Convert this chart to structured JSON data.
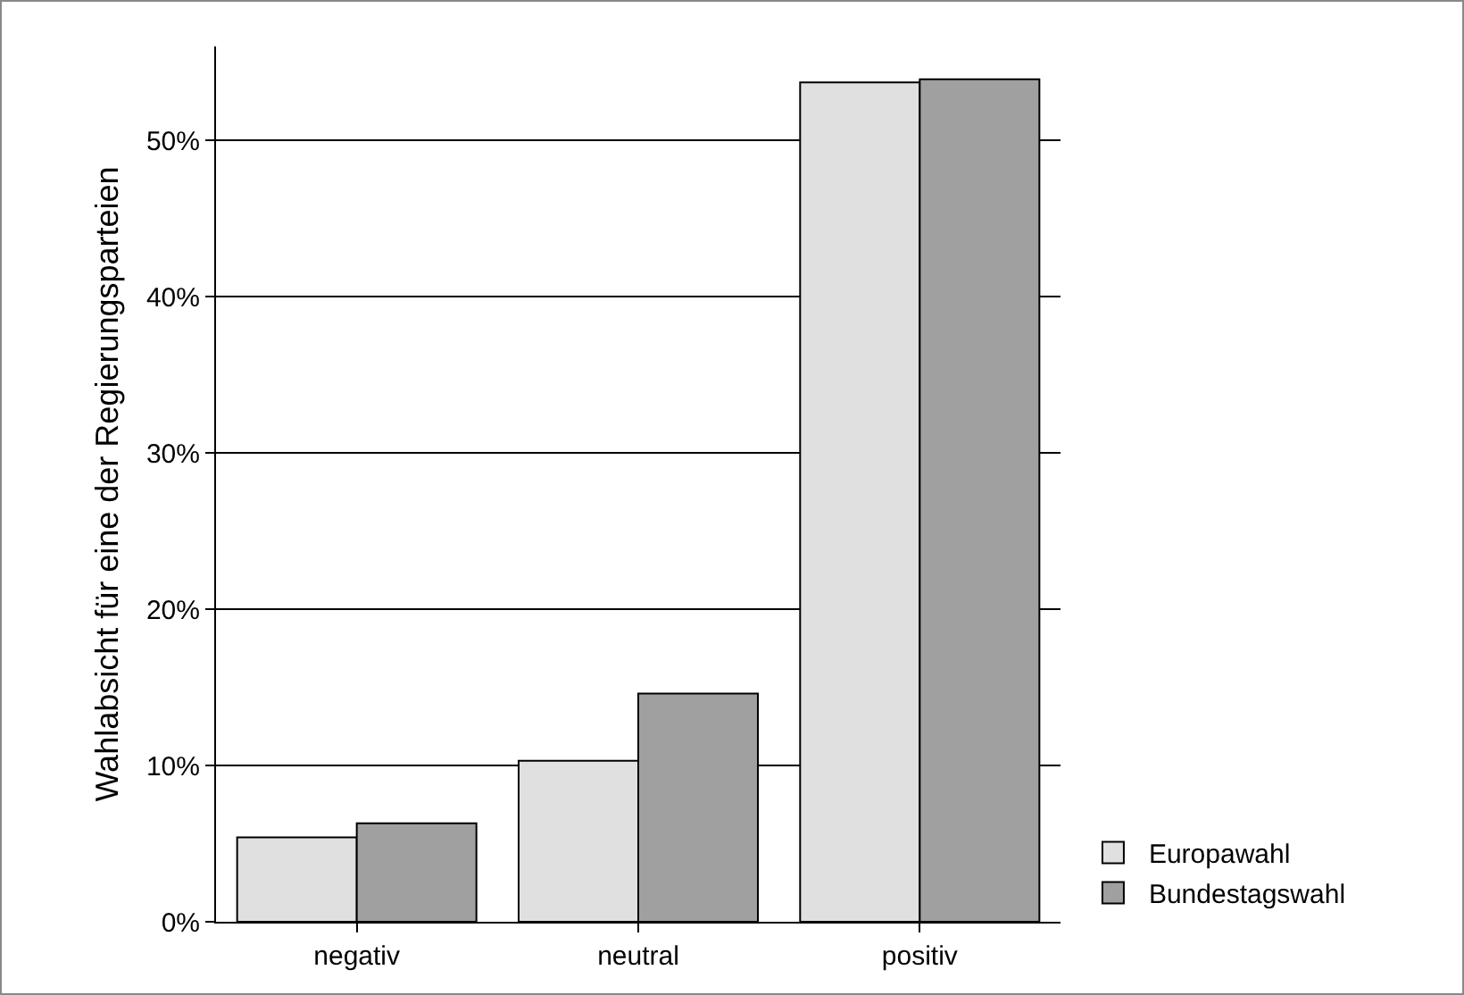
{
  "chart_data": {
    "type": "bar",
    "ylabel": "Wahlabsicht für eine der Regierungsparteien",
    "categories": [
      "negativ",
      "neutral",
      "positiv"
    ],
    "series": [
      {
        "name": "Europawahl",
        "color": "#e0e0e0",
        "values": [
          5.4,
          10.3,
          53.7
        ]
      },
      {
        "name": "Bundestagswahl",
        "color": "#a0a0a0",
        "values": [
          6.3,
          14.6,
          53.9
        ]
      }
    ],
    "ylim": [
      0,
      56
    ],
    "yticks": [
      {
        "value": 0,
        "label": "0%"
      },
      {
        "value": 10,
        "label": "10%"
      },
      {
        "value": 20,
        "label": "20%"
      },
      {
        "value": 30,
        "label": "30%"
      },
      {
        "value": 40,
        "label": "40%"
      },
      {
        "value": 50,
        "label": "50%"
      }
    ],
    "grid": "y",
    "legend": "bottom right"
  }
}
